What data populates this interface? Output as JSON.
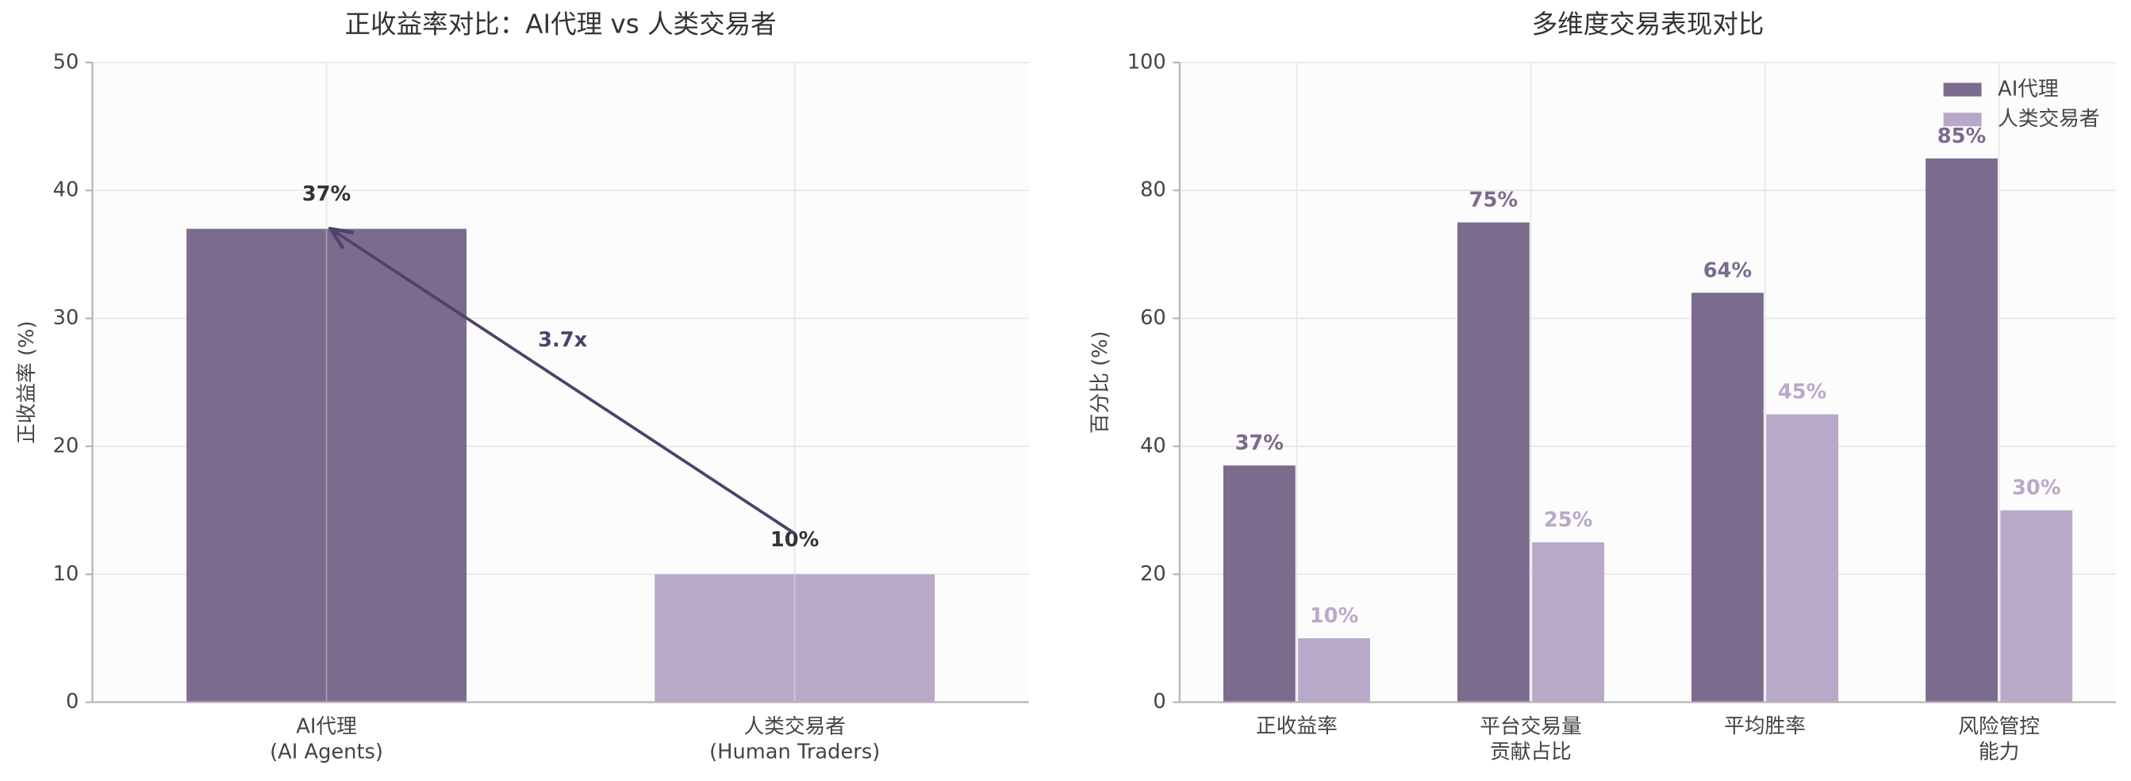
{
  "chart_data": [
    {
      "type": "bar",
      "title": "正收益率对比：AI代理 vs 人类交易者",
      "categories": [
        "AI代理\n(AI Agents)",
        "人类交易者\n(Human Traders)"
      ],
      "values": [
        37,
        10
      ],
      "value_labels": [
        "37%",
        "10%"
      ],
      "colors": [
        "#7b6b8d",
        "#b8a9c9"
      ],
      "ylabel": "正收益率 (%)",
      "ylim": [
        0,
        50
      ],
      "yticks": [
        0,
        10,
        20,
        30,
        40,
        50
      ],
      "grid": true,
      "annotation": "3.7x"
    },
    {
      "type": "grouped-bar",
      "title": "多维度交易表现对比",
      "categories": [
        "正收益率",
        "平台交易量\n贡献占比",
        "平均胜率",
        "风险管控\n能力"
      ],
      "series": [
        {
          "name": "AI代理",
          "color": "#7b6b8d",
          "values": [
            37,
            75,
            64,
            85
          ],
          "value_labels": [
            "37%",
            "75%",
            "64%",
            "85%"
          ]
        },
        {
          "name": "人类交易者",
          "color": "#b8a9c9",
          "values": [
            10,
            25,
            45,
            30
          ],
          "value_labels": [
            "10%",
            "25%",
            "45%",
            "30%"
          ]
        }
      ],
      "ylabel": "百分比 (%)",
      "ylim": [
        0,
        100
      ],
      "yticks": [
        0,
        20,
        40,
        60,
        80,
        100
      ],
      "grid": true,
      "legend": "upper right"
    }
  ]
}
